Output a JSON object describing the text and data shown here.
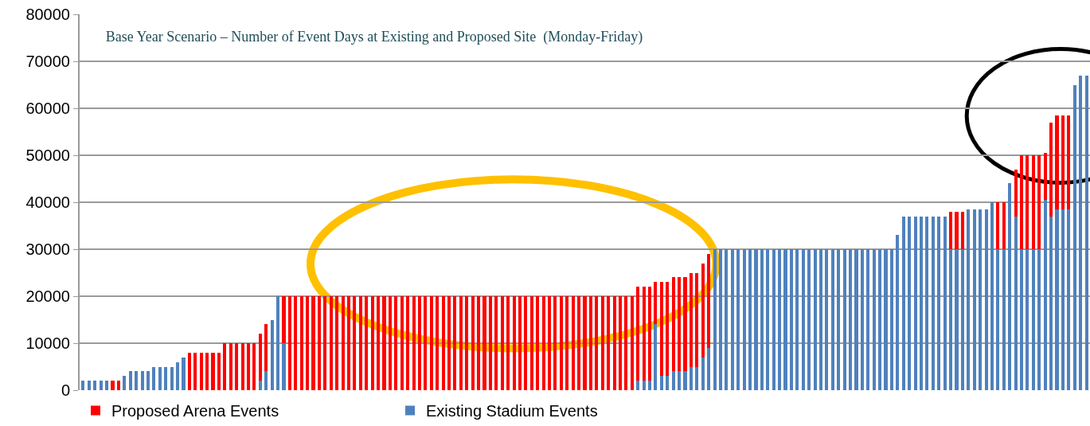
{
  "chart_data": {
    "type": "bar",
    "title": "Base Year Scenario – Number of Event Days at Existing and Proposed Site  (Monday-Friday)",
    "stacked": true,
    "categories": [
      null,
      null,
      null,
      null,
      null,
      null,
      null,
      null,
      null,
      null,
      null,
      null,
      null,
      null,
      null,
      null,
      null,
      null,
      null,
      null,
      null,
      null,
      null,
      null,
      null,
      null,
      null,
      null,
      null,
      null,
      null,
      null,
      null,
      null,
      null,
      null,
      null,
      null,
      null,
      null,
      null,
      null,
      null,
      null,
      null,
      null,
      null,
      null,
      null,
      null,
      null,
      null,
      null,
      null,
      null,
      null,
      null,
      null,
      null,
      null,
      null,
      null,
      null,
      null,
      null,
      null,
      null,
      null,
      null,
      null,
      null,
      null,
      null,
      null,
      null,
      null,
      null,
      null,
      null,
      null,
      null,
      null,
      null,
      null,
      null,
      null,
      null,
      null,
      null,
      null,
      null,
      null,
      null,
      null,
      null,
      null,
      null,
      null,
      null,
      null,
      null,
      null,
      null,
      null,
      null,
      null,
      null,
      null,
      null,
      null,
      null,
      null,
      null,
      null,
      null,
      null,
      null,
      null,
      null,
      null,
      null,
      null,
      null,
      null,
      null,
      null,
      null,
      null,
      null,
      null,
      null,
      null,
      null,
      null,
      null,
      null,
      null,
      null,
      null,
      null,
      null,
      null,
      null,
      null,
      null,
      null,
      null,
      null,
      null,
      null,
      null,
      null,
      null,
      null,
      null,
      null,
      null,
      null,
      null,
      null,
      null,
      null,
      null,
      null,
      null,
      null,
      null,
      null,
      null,
      null,
      null
    ],
    "series": [
      {
        "name": "Existing Stadium Events",
        "color": "#4f81bd",
        "values": [
          2000,
          2000,
          2000,
          2000,
          2000,
          null,
          null,
          3000,
          4000,
          4000,
          4000,
          4000,
          5000,
          5000,
          5000,
          5000,
          6000,
          7000,
          null,
          null,
          null,
          null,
          null,
          null,
          null,
          null,
          null,
          null,
          null,
          null,
          2000,
          4000,
          15000,
          20000,
          10000,
          null,
          null,
          null,
          null,
          null,
          null,
          null,
          null,
          null,
          null,
          null,
          null,
          null,
          null,
          null,
          null,
          null,
          null,
          null,
          null,
          null,
          null,
          null,
          null,
          null,
          null,
          null,
          null,
          null,
          null,
          null,
          null,
          null,
          null,
          null,
          null,
          null,
          null,
          null,
          null,
          null,
          null,
          null,
          null,
          null,
          null,
          null,
          null,
          null,
          null,
          null,
          null,
          null,
          null,
          null,
          null,
          null,
          null,
          null,
          2000,
          2000,
          2000,
          14000,
          3000,
          3000,
          4000,
          4000,
          4000,
          5000,
          5000,
          7000,
          9000,
          30000,
          30000,
          30000,
          30000,
          30000,
          30000,
          30000,
          30000,
          30000,
          30000,
          30000,
          30000,
          30000,
          30000,
          30000,
          30000,
          30000,
          30000,
          30000,
          30000,
          30000,
          30000,
          30000,
          30000,
          30000,
          30000,
          30000,
          30000,
          30000,
          30000,
          30000,
          33000,
          37000,
          37000,
          37000,
          37000,
          37000,
          37000,
          37000,
          37000,
          30000,
          30000,
          30000,
          38500,
          38500,
          38500,
          38500,
          40000,
          30000,
          30000,
          44000,
          37000,
          30000,
          30000,
          30000,
          30000,
          40500,
          37000,
          38500,
          38500,
          38500,
          65000,
          67000,
          67000
        ]
      },
      {
        "name": "Proposed Arena Events",
        "color": "#ff0000",
        "values": [
          null,
          null,
          null,
          null,
          null,
          2000,
          2000,
          null,
          null,
          null,
          null,
          null,
          null,
          null,
          null,
          null,
          null,
          null,
          8000,
          8000,
          8000,
          8000,
          8000,
          8000,
          10000,
          10000,
          10000,
          10000,
          10000,
          10000,
          10000,
          10000,
          null,
          null,
          10000,
          20000,
          20000,
          20000,
          20000,
          20000,
          20000,
          20000,
          20000,
          20000,
          20000,
          20000,
          20000,
          20000,
          20000,
          20000,
          20000,
          20000,
          20000,
          20000,
          20000,
          20000,
          20000,
          20000,
          20000,
          20000,
          20000,
          20000,
          20000,
          20000,
          20000,
          20000,
          20000,
          20000,
          20000,
          20000,
          20000,
          20000,
          20000,
          20000,
          20000,
          20000,
          20000,
          20000,
          20000,
          20000,
          20000,
          20000,
          20000,
          20000,
          20000,
          20000,
          20000,
          20000,
          20000,
          20000,
          20000,
          20000,
          20000,
          20000,
          20000,
          20000,
          20000,
          9000,
          20000,
          20000,
          20000,
          20000,
          20000,
          20000,
          20000,
          20000,
          20000,
          null,
          null,
          null,
          null,
          null,
          null,
          null,
          null,
          null,
          null,
          null,
          null,
          null,
          null,
          null,
          null,
          null,
          null,
          null,
          null,
          null,
          null,
          null,
          null,
          null,
          null,
          null,
          null,
          null,
          null,
          null,
          null,
          null,
          null,
          null,
          null,
          null,
          null,
          null,
          null,
          8000,
          8000,
          8000,
          null,
          null,
          null,
          null,
          null,
          10000,
          10000,
          null,
          10000,
          20000,
          20000,
          20000,
          20000,
          10000,
          20000,
          20000,
          20000,
          20000,
          null,
          null,
          null
        ]
      }
    ],
    "ylim": [
      0,
      80000
    ],
    "yticks": [
      0,
      10000,
      20000,
      30000,
      40000,
      50000,
      60000,
      70000,
      80000
    ],
    "grid": "y",
    "legend": "bottom"
  }
}
